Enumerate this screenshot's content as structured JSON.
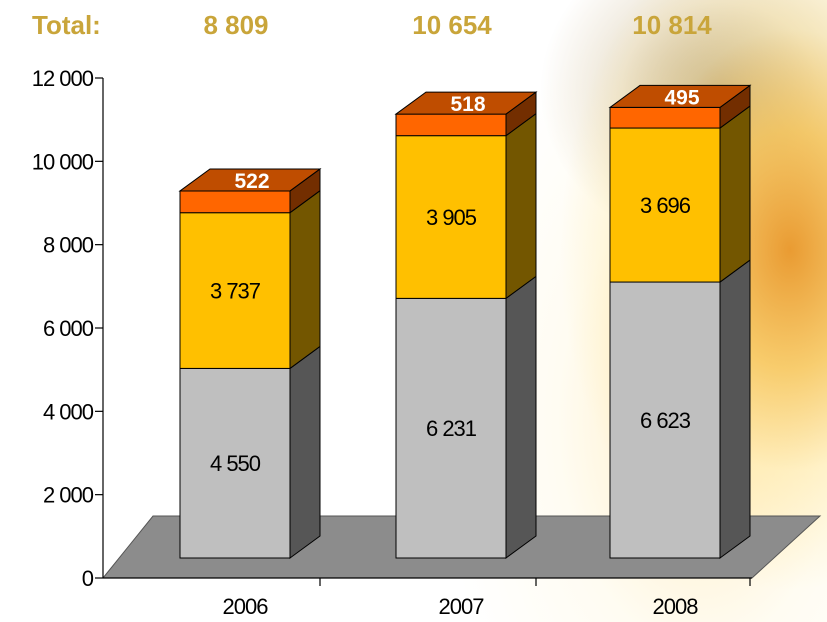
{
  "totals": {
    "label": "Total:",
    "values": [
      "8 809",
      "10 654",
      "10 814"
    ]
  },
  "chart_data": {
    "type": "bar",
    "stacked": true,
    "three_d": true,
    "categories": [
      "2006",
      "2007",
      "2008"
    ],
    "series": [
      {
        "values": [
          4550,
          6231,
          6623
        ],
        "labels": [
          "4 550",
          "6 231",
          "6 623"
        ],
        "color": "#bfbfbf"
      },
      {
        "values": [
          3737,
          3905,
          3696
        ],
        "labels": [
          "3 737",
          "3 905",
          "3 696"
        ],
        "color": "#ffc000"
      },
      {
        "values": [
          522,
          518,
          495
        ],
        "labels": [
          "522",
          "518",
          "495"
        ],
        "color": "#ff6600"
      }
    ],
    "ylim": [
      0,
      12000
    ],
    "yticks": [
      0,
      2000,
      4000,
      6000,
      8000,
      10000,
      12000
    ],
    "ytick_labels": [
      "0",
      "2 000",
      "4 000",
      "6 000",
      "8 000",
      "10 000",
      "12 000"
    ],
    "title": "",
    "xlabel": "",
    "ylabel": "",
    "grid": false,
    "legend": "none"
  }
}
